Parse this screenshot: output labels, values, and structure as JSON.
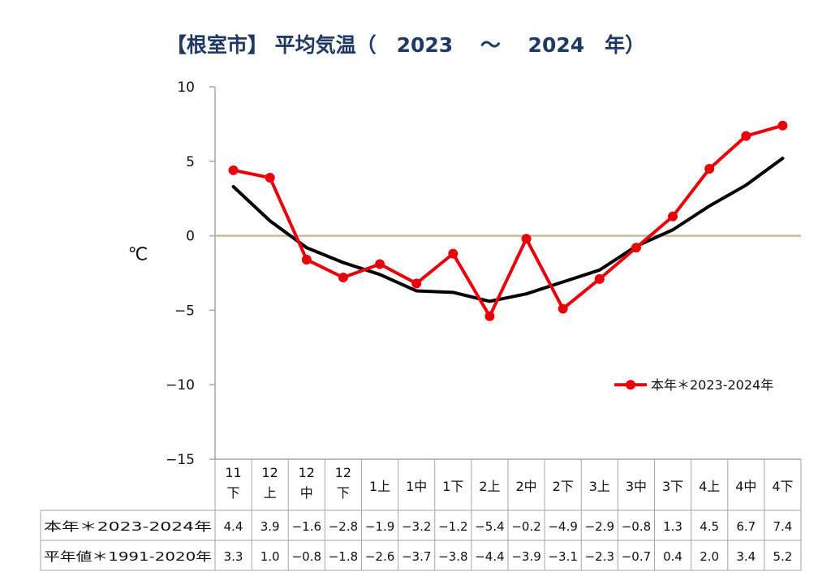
{
  "title": "【根室市】 平均気温（　2023　 ～　 2024　年）",
  "chart_data": {
    "type": "line",
    "title": "【根室市】 平均気温（　2023　 ～　 2024　年）",
    "ylabel": "℃",
    "ylim": [
      -15,
      10
    ],
    "yticks": [
      10,
      5,
      0,
      -5,
      -10,
      -15
    ],
    "ytick_labels": [
      "10",
      "5",
      "0",
      "−5",
      "−10",
      "−15"
    ],
    "grid": false,
    "legend_position": "right",
    "categories": [
      [
        "11",
        "下"
      ],
      [
        "12",
        "上"
      ],
      [
        "12",
        "中"
      ],
      [
        "12",
        "下"
      ],
      [
        "1上"
      ],
      [
        "1中"
      ],
      [
        "1下"
      ],
      [
        "2上"
      ],
      [
        "2中"
      ],
      [
        "2下"
      ],
      [
        "3上"
      ],
      [
        "3中"
      ],
      [
        "3下"
      ],
      [
        "4上"
      ],
      [
        "4中"
      ],
      [
        "4下"
      ]
    ],
    "series": [
      {
        "name": "本年＊2023-2024年",
        "table_label": "本年＊2023-2024年",
        "color": "#e8000b",
        "values": [
          4.4,
          3.9,
          -1.6,
          -2.8,
          -1.9,
          -3.2,
          -1.2,
          -5.4,
          -0.2,
          -4.9,
          -2.9,
          -0.8,
          1.3,
          4.5,
          6.7,
          7.4
        ],
        "display": [
          "4.4",
          "3.9",
          "−1.6",
          "−2.8",
          "−1.9",
          "−3.2",
          "−1.2",
          "−5.4",
          "−0.2",
          "−4.9",
          "−2.9",
          "−0.8",
          "1.3",
          "4.5",
          "6.7",
          "7.4"
        ]
      },
      {
        "name": "",
        "table_label": "平年値＊1991-2020年",
        "color": "#000000",
        "values": [
          3.3,
          1.0,
          -0.8,
          -1.8,
          -2.6,
          -3.7,
          -3.8,
          -4.4,
          -3.9,
          -3.1,
          -2.3,
          -0.7,
          0.4,
          2.0,
          3.4,
          5.2
        ],
        "display": [
          "3.3",
          "1.0",
          "−0.8",
          "−1.8",
          "−2.6",
          "−3.7",
          "−3.8",
          "−4.4",
          "−3.9",
          "−3.1",
          "−2.3",
          "−0.7",
          "0.4",
          "2.0",
          "3.4",
          "5.2"
        ]
      }
    ],
    "zero_line_color": "#c8bc9c",
    "axis_color": "#a6a6a6"
  }
}
